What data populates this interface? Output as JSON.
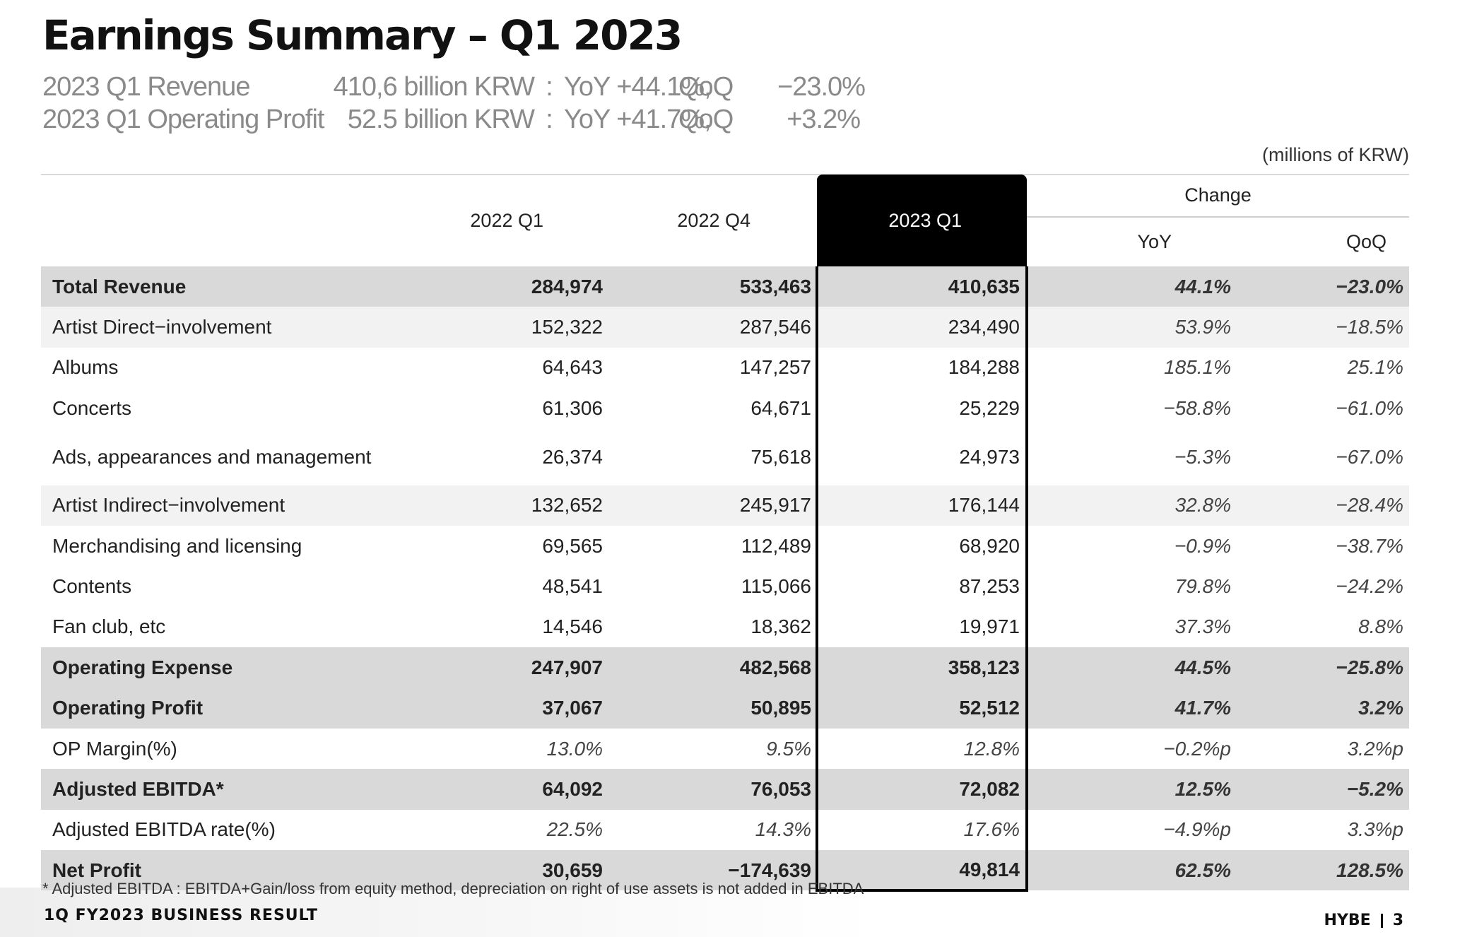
{
  "title": "Earnings Summary – Q1 2023",
  "summary": [
    {
      "label": "2023 Q1 Revenue",
      "amount": "410,6 billion KRW",
      "sep": ":",
      "yoy": "YoY  +44.1%,",
      "qoq_label": "QoQ",
      "qoq": "−23.0%"
    },
    {
      "label": "2023 Q1 Operating Profit",
      "amount": "52.5 billion KRW",
      "sep": ":",
      "yoy": "YoY  +41.7%,",
      "qoq_label": "QoQ",
      "qoq": "+3.2%"
    }
  ],
  "unit": "(millions of KRW)",
  "table": {
    "headers": {
      "p1": "2022 Q1",
      "p2": "2022 Q4",
      "p3": "2023 Q1",
      "change": "Change",
      "yoy": "YoY",
      "qoq": "QoQ"
    },
    "rows": [
      {
        "label": "Total Revenue",
        "v1": "284,974",
        "v2": "533,463",
        "v3": "410,635",
        "yoy": "44.1%",
        "qoq": "−23.0%"
      },
      {
        "label": "Artist Direct−involvement",
        "v1": "152,322",
        "v2": "287,546",
        "v3": "234,490",
        "yoy": "53.9%",
        "qoq": "−18.5%"
      },
      {
        "label": "Albums",
        "v1": "64,643",
        "v2": "147,257",
        "v3": "184,288",
        "yoy": "185.1%",
        "qoq": "25.1%"
      },
      {
        "label": "Concerts",
        "v1": "61,306",
        "v2": "64,671",
        "v3": "25,229",
        "yoy": "−58.8%",
        "qoq": "−61.0%"
      },
      {
        "label": "Ads, appearances and management",
        "v1": "26,374",
        "v2": "75,618",
        "v3": "24,973",
        "yoy": "−5.3%",
        "qoq": "−67.0%"
      },
      {
        "label": "Artist Indirect−involvement",
        "v1": "132,652",
        "v2": "245,917",
        "v3": "176,144",
        "yoy": "32.8%",
        "qoq": "−28.4%"
      },
      {
        "label": "Merchandising and licensing",
        "v1": "69,565",
        "v2": "112,489",
        "v3": "68,920",
        "yoy": "−0.9%",
        "qoq": "−38.7%"
      },
      {
        "label": "Contents",
        "v1": "48,541",
        "v2": "115,066",
        "v3": "87,253",
        "yoy": "79.8%",
        "qoq": "−24.2%"
      },
      {
        "label": "Fan club, etc",
        "v1": "14,546",
        "v2": "18,362",
        "v3": "19,971",
        "yoy": "37.3%",
        "qoq": "8.8%"
      },
      {
        "label": "Operating Expense",
        "v1": "247,907",
        "v2": "482,568",
        "v3": "358,123",
        "yoy": "44.5%",
        "qoq": "−25.8%"
      },
      {
        "label": "Operating Profit",
        "v1": "37,067",
        "v2": "50,895",
        "v3": "52,512",
        "yoy": "41.7%",
        "qoq": "3.2%"
      },
      {
        "label": "OP Margin(%)",
        "v1": "13.0%",
        "v2": "9.5%",
        "v3": "12.8%",
        "yoy": "−0.2%p",
        "qoq": "3.2%p"
      },
      {
        "label": "Adjusted EBITDA*",
        "v1": "64,092",
        "v2": "76,053",
        "v3": "72,082",
        "yoy": "12.5%",
        "qoq": "−5.2%"
      },
      {
        "label": "Adjusted EBITDA rate(%)",
        "v1": "22.5%",
        "v2": "14.3%",
        "v3": "17.6%",
        "yoy": "−4.9%p",
        "qoq": "3.3%p"
      },
      {
        "label": "Net Profit",
        "v1": "30,659",
        "v2": "−174,639",
        "v3": "49,814",
        "yoy": "62.5%",
        "qoq": "128.5%"
      }
    ]
  },
  "footnote": "* Adjusted EBITDA : EBITDA+Gain/loss from equity method, depreciation on right of use assets is not added in EBITDA",
  "footer": {
    "left": "1Q FY2023 BUSINESS RESULT",
    "brand": "HYBE",
    "page": "3"
  }
}
